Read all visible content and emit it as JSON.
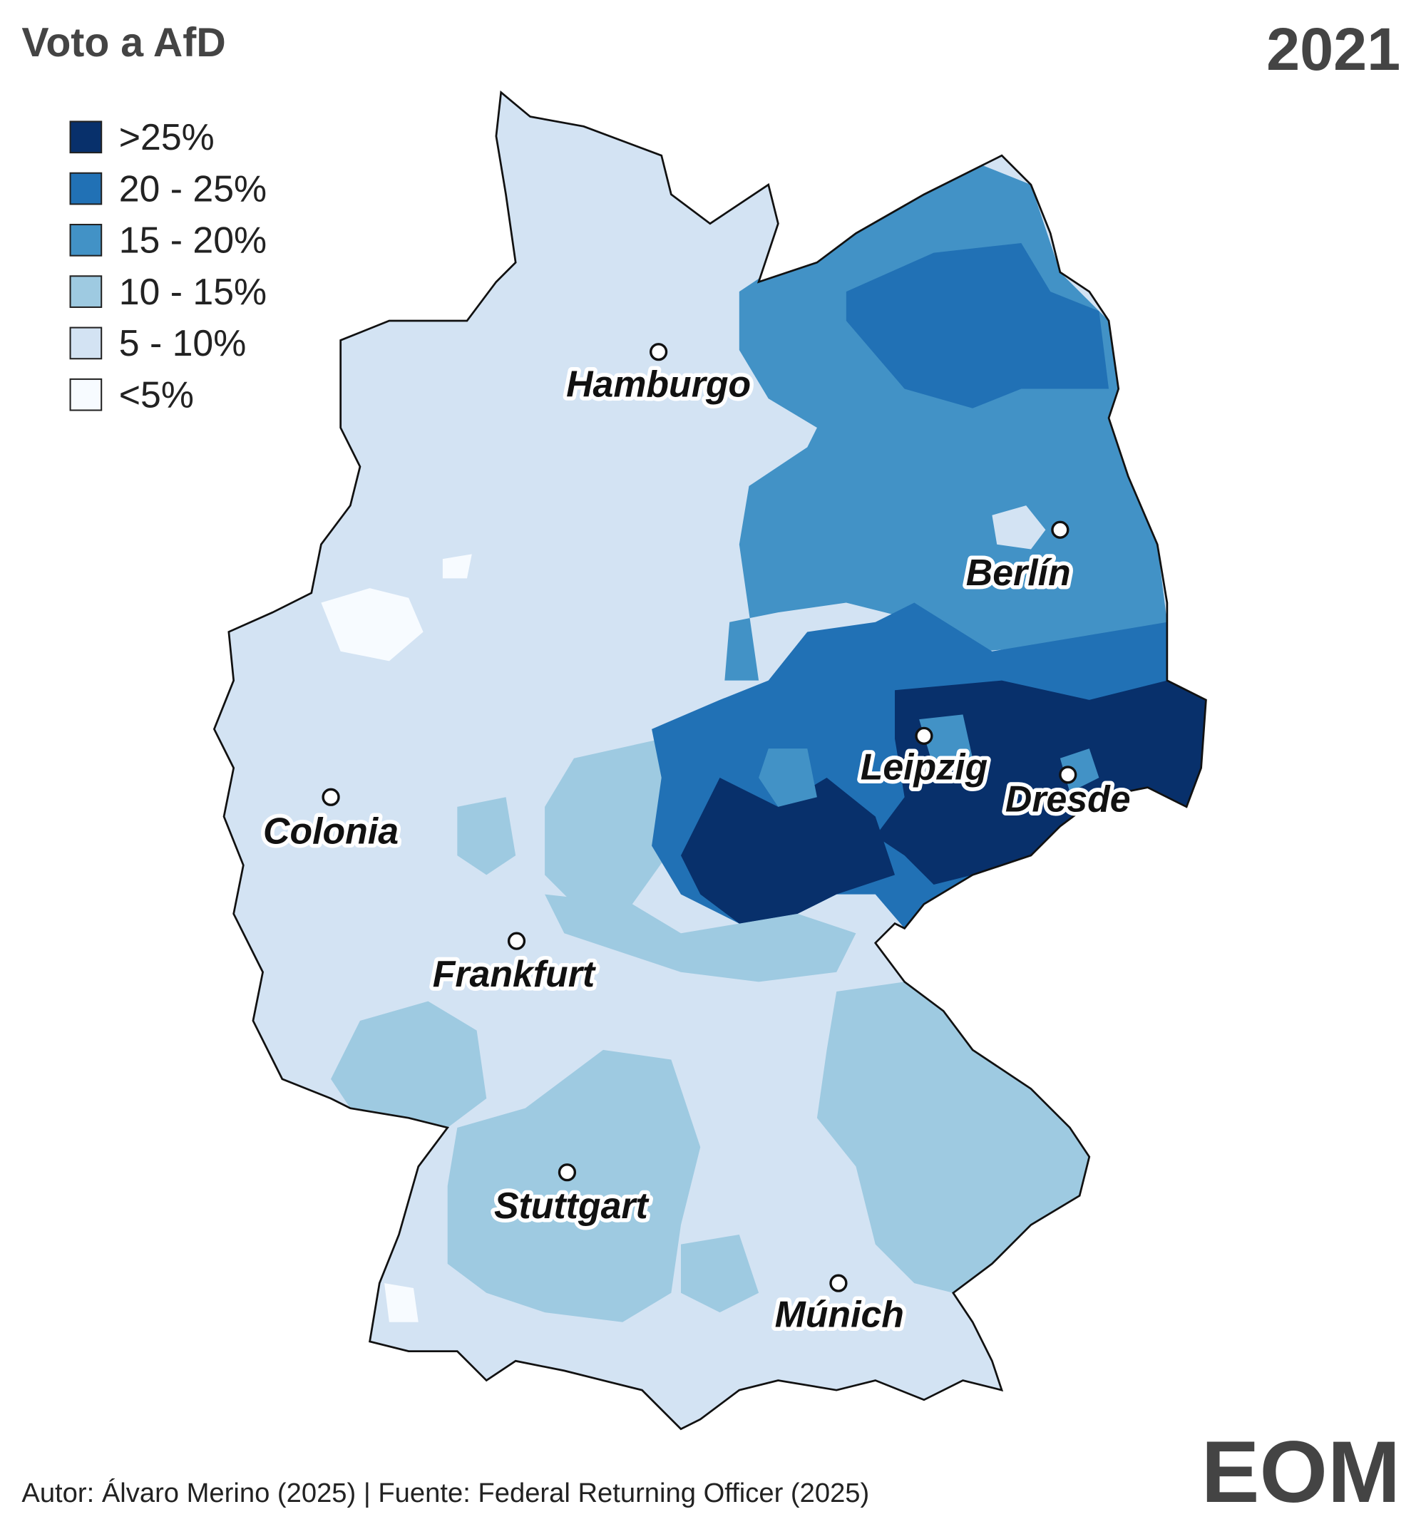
{
  "title": "Voto a AfD",
  "year": "2021",
  "legend": [
    {
      "label": ">25%",
      "color": "#08306b"
    },
    {
      "label": "20 - 25%",
      "color": "#2171b5"
    },
    {
      "label": "15 - 20%",
      "color": "#4292c6"
    },
    {
      "label": "10 - 15%",
      "color": "#9ecae1"
    },
    {
      "label": "5 - 10%",
      "color": "#d3e3f3"
    },
    {
      "label": "<5%",
      "color": "#f7fbff"
    }
  ],
  "cities": [
    "Hamburgo",
    "Berlín",
    "Leipzig",
    "Dresde",
    "Colonia",
    "Frankfurt",
    "Stuttgart",
    "Múnich"
  ],
  "source": "Autor: Álvaro Merino (2025) | Fuente: Federal Returning Officer (2025)",
  "logo": "EOM"
}
